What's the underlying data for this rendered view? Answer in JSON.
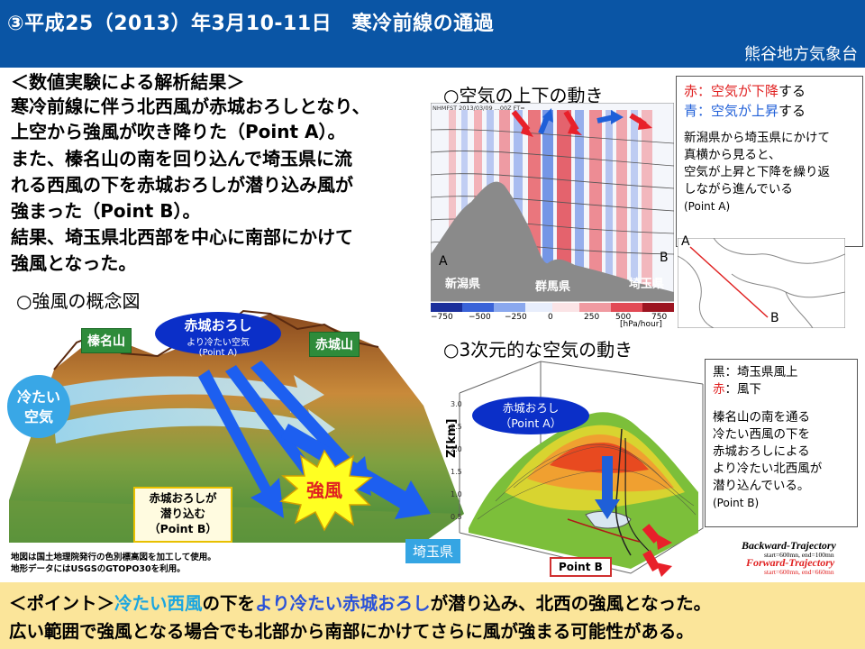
{
  "header": {
    "title": "③平成25（2013）年3月10-11日　寒冷前線の通過",
    "office": "熊谷地方気象台"
  },
  "analysis": {
    "heading": "＜数値実験による解析結果＞",
    "lines": [
      "寒冷前線に伴う北西風が赤城おろしとなり、",
      "上空から強風が吹き降りた（Point A）。",
      "また、榛名山の南を回り込んで埼玉県に流",
      "れる西風の下を赤城おろしが潜り込み風が",
      "強まった（Point B）。",
      "結果、埼玉県北西部を中心に南部にかけて",
      "強風となった。"
    ]
  },
  "concept": {
    "title": "○強風の概念図",
    "haruna": "榛名山",
    "akagi": "赤城山",
    "cold_air": [
      "冷たい",
      "空気"
    ],
    "akagi_oroshi": [
      "赤城おろし",
      "より冷たい空気",
      "(Point A)"
    ],
    "sneak": [
      "赤城おろしが",
      "潜り込む",
      "（Point B）"
    ],
    "strong": "強風",
    "saitama": "埼玉県",
    "credit": [
      "地図は国土地理院発行の色別標高図を加工して使用。",
      "地形データにはUSGSのGTOPO30を利用。"
    ]
  },
  "vertical": {
    "title": "○空気の上下の動き",
    "plot_header": "NHMFST  2013/03/09  ...00Z  FT=",
    "label_a": "A",
    "label_b": "B",
    "niigata": "新潟県",
    "gunma": "群馬県",
    "saitama": "埼玉県",
    "scale_ticks": [
      "−750",
      "−500",
      "−250",
      "0",
      "250",
      "500",
      "750"
    ],
    "scale_unit": "[hPa/hour]",
    "legend_red_prefix": "赤：空気が",
    "legend_red_word": "下降",
    "legend_red_suffix": "する",
    "legend_blue_prefix": "青：空気が",
    "legend_blue_word": "上昇",
    "legend_blue_suffix": "する",
    "note": [
      "新潟県から埼玉県にかけて",
      "真横から見ると、",
      "空気が上昇と下降を繰り返",
      "しながら進んでいる",
      "(Point A)"
    ],
    "map_a": "A",
    "map_b": "B",
    "colors": {
      "sinking": "#e8202a",
      "rising": "#1f5fd8"
    }
  },
  "three_d": {
    "title": "○3次元的な空気の動き",
    "zlabel": "Z[km]",
    "bubble": [
      "赤城おろし",
      "（Point A）"
    ],
    "point_b": "Point B",
    "legend_black": "黒：埼玉県風上",
    "legend_red_prefix": "赤",
    "legend_red_suffix": "：風下",
    "note": [
      "榛名山の南を通る",
      "冷たい西風の下を",
      "赤城おろしによる",
      "より冷たい北西風が",
      "潜り込んでいる。",
      "(Point B)"
    ],
    "backward": "Backward-Trajectory",
    "backward_sub": "start=600mn, end=100mn",
    "forward": "Forward-Trajectory",
    "forward_sub": "start=600mn, end=660mn"
  },
  "point": {
    "p1": "＜ポイント＞",
    "p2": "冷たい西風",
    "p3": "の下を",
    "p4": "より冷たい赤城おろし",
    "p5": "が潜り込み、北西の強風となった。",
    "line2": "広い範囲で強風となる場合でも北部から南部にかけてさらに風が強まる可能性がある。"
  }
}
